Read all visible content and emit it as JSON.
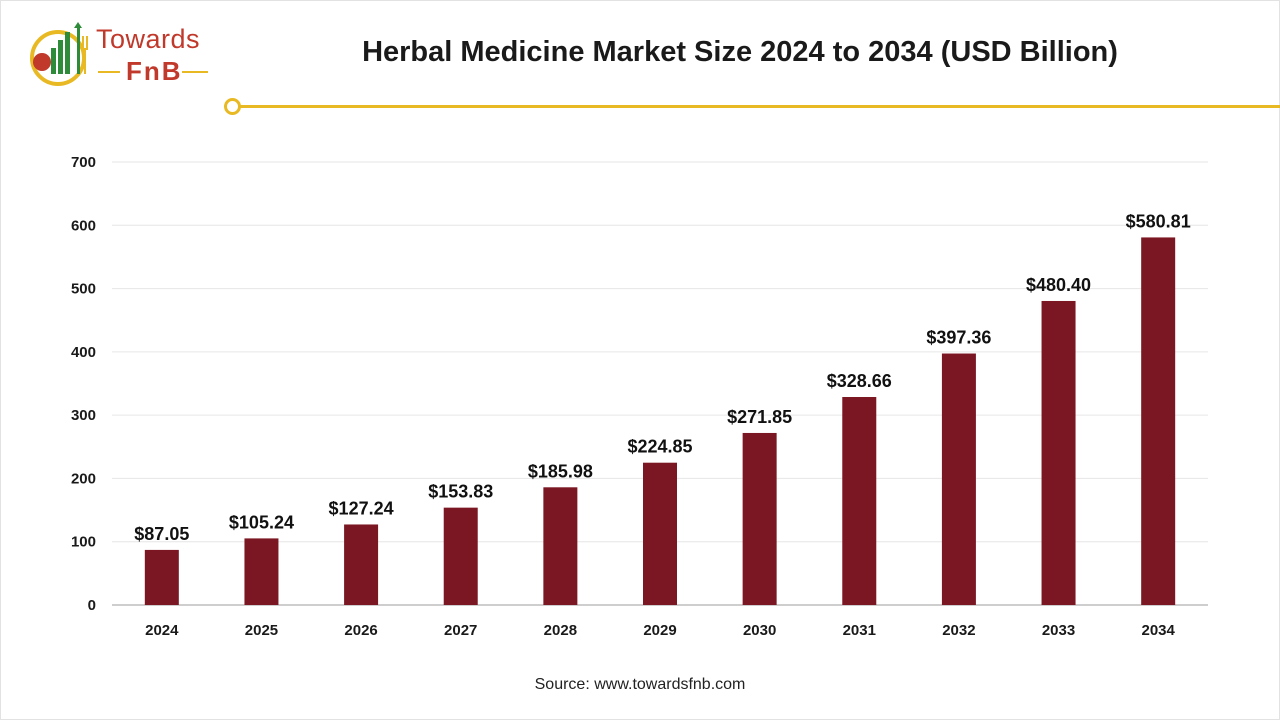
{
  "header": {
    "logo_line1": "Towards",
    "logo_line2": "FnB",
    "title": "Herbal Medicine Market Size 2024 to 2034 (USD Billion)"
  },
  "footer": {
    "source": "Source: www.towardsfnb.com"
  },
  "colors": {
    "bar": "#7b1722",
    "accent": "#e8b923",
    "logo_red": "#c0392b",
    "logo_green": "#2e8b3a"
  },
  "chart_data": {
    "type": "bar",
    "categories": [
      "2024",
      "2025",
      "2026",
      "2027",
      "2028",
      "2029",
      "2030",
      "2031",
      "2032",
      "2033",
      "2034"
    ],
    "values": [
      87.05,
      105.24,
      127.24,
      153.83,
      185.98,
      224.85,
      271.85,
      328.66,
      397.36,
      480.4,
      580.81
    ],
    "data_labels": [
      "$87.05",
      "$105.24",
      "$127.24",
      "$153.83",
      "$185.98",
      "$224.85",
      "$271.85",
      "$328.66",
      "$397.36",
      "$480.40",
      "$580.81"
    ],
    "ylim": [
      0,
      700
    ],
    "yticks": [
      "0",
      "100",
      "200",
      "300",
      "400",
      "500",
      "600",
      "700"
    ],
    "grid": true,
    "legend": "none"
  }
}
